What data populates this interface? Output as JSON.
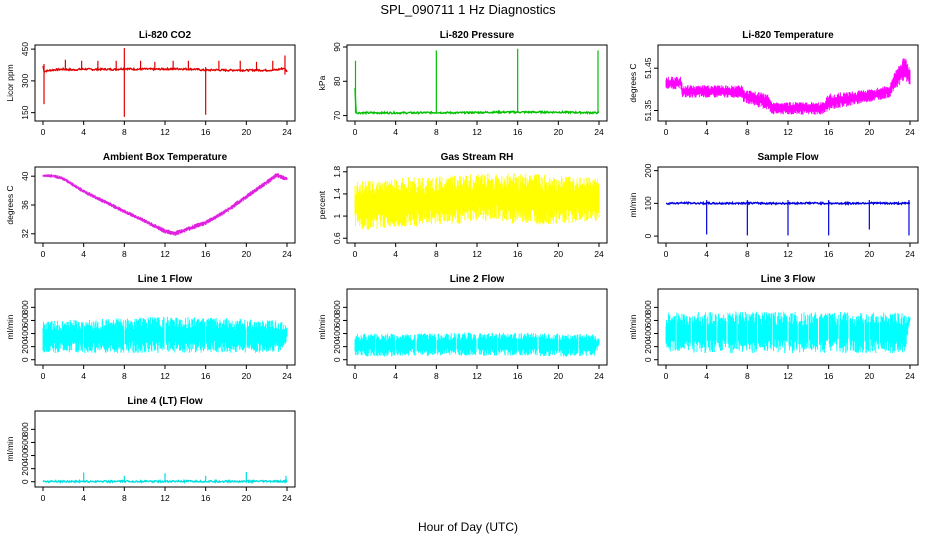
{
  "figure": {
    "title": "SPL_090711  1 Hz Diagnostics",
    "xlabel": "Hour of Day (UTC)"
  },
  "chart_data": [
    {
      "type": "line",
      "title": "Li-820 CO2",
      "ylabel": "Licor ppm",
      "color": "#e00000",
      "xlim": [
        0,
        24
      ],
      "ylim": [
        120,
        460
      ],
      "xticks": [
        0,
        4,
        8,
        12,
        16,
        20,
        24
      ],
      "yticks": [
        150,
        300,
        450
      ],
      "x": [
        0,
        0.1,
        1,
        2,
        3,
        4,
        5,
        6,
        7,
        8,
        9,
        10,
        11,
        12,
        13,
        14,
        15,
        16,
        17,
        18,
        19,
        20,
        21,
        22,
        23,
        23.7,
        24
      ],
      "y": [
        370,
        345,
        352,
        355,
        352,
        356,
        354,
        355,
        354,
        358,
        355,
        356,
        355,
        356,
        357,
        356,
        355,
        350,
        352,
        350,
        351,
        350,
        351,
        350,
        352,
        360,
        345
      ],
      "spikes": [
        {
          "x": 0.1,
          "low": 190,
          "high": 380
        },
        {
          "x": 2.2,
          "low": 350,
          "high": 400
        },
        {
          "x": 3.8,
          "low": 350,
          "high": 395
        },
        {
          "x": 5.4,
          "low": 350,
          "high": 395
        },
        {
          "x": 7.2,
          "low": 350,
          "high": 395
        },
        {
          "x": 8.0,
          "low": 130,
          "high": 455
        },
        {
          "x": 9.6,
          "low": 350,
          "high": 395
        },
        {
          "x": 11.0,
          "low": 350,
          "high": 390
        },
        {
          "x": 12.8,
          "low": 350,
          "high": 395
        },
        {
          "x": 14.3,
          "low": 350,
          "high": 395
        },
        {
          "x": 16.0,
          "low": 140,
          "high": 365
        },
        {
          "x": 17.3,
          "low": 350,
          "high": 395
        },
        {
          "x": 19.4,
          "low": 350,
          "high": 395
        },
        {
          "x": 21.0,
          "low": 350,
          "high": 390
        },
        {
          "x": 22.6,
          "low": 350,
          "high": 395
        },
        {
          "x": 23.8,
          "low": 330,
          "high": 420
        }
      ]
    },
    {
      "type": "line",
      "title": "Li-820 Pressure",
      "ylabel": "kPa",
      "color": "#00c000",
      "xlim": [
        0,
        24
      ],
      "ylim": [
        69,
        90
      ],
      "xticks": [
        0,
        4,
        8,
        12,
        16,
        20,
        24
      ],
      "yticks": [
        70,
        80,
        90
      ],
      "x": [
        0,
        0.1,
        0.2,
        2,
        4,
        6,
        8,
        10,
        12,
        14,
        16,
        18,
        20,
        22,
        24
      ],
      "y": [
        78,
        71,
        70.8,
        70.8,
        70.8,
        70.8,
        70.9,
        70.8,
        70.9,
        71.0,
        71.0,
        71.0,
        71.0,
        70.9,
        70.8
      ],
      "spikes": [
        {
          "x": 0.05,
          "low": 70.8,
          "high": 86
        },
        {
          "x": 8.0,
          "low": 70.8,
          "high": 89
        },
        {
          "x": 16.0,
          "low": 70.8,
          "high": 89.5
        },
        {
          "x": 23.9,
          "low": 70.8,
          "high": 89
        }
      ]
    },
    {
      "type": "area",
      "title": "Li-820 Temperature",
      "ylabel": "degrees C",
      "color": "#ff00ff",
      "xlim": [
        0,
        24
      ],
      "ylim": [
        51.33,
        51.5
      ],
      "xticks": [
        0,
        4,
        8,
        12,
        16,
        20,
        24
      ],
      "yticks": [
        51.35,
        51.45
      ],
      "x": [
        0,
        1.5,
        1.6,
        7.5,
        7.6,
        10,
        10.5,
        15.5,
        16,
        20,
        22,
        22.5,
        23,
        23.5,
        24
      ],
      "low": [
        51.4,
        51.4,
        51.38,
        51.38,
        51.37,
        51.35,
        51.34,
        51.34,
        51.35,
        51.37,
        51.38,
        51.4,
        51.41,
        51.42,
        51.41
      ],
      "high": [
        51.43,
        51.43,
        51.41,
        51.41,
        51.4,
        51.39,
        51.37,
        51.37,
        51.39,
        51.4,
        51.41,
        51.44,
        51.46,
        51.48,
        51.45
      ]
    },
    {
      "type": "area",
      "title": "Ambient Box Temperature",
      "ylabel": "degrees C",
      "color": "#e020e0",
      "xlim": [
        0,
        24
      ],
      "ylim": [
        31,
        41
      ],
      "xticks": [
        0,
        4,
        8,
        12,
        16,
        20,
        24
      ],
      "yticks": [
        32,
        36,
        40
      ],
      "x": [
        0,
        1,
        2,
        4,
        6,
        8,
        10,
        12,
        13,
        14,
        16,
        18,
        20,
        22,
        23,
        24
      ],
      "low": [
        39.8,
        39.8,
        39.4,
        37.6,
        36.2,
        34.8,
        33.5,
        32.0,
        31.7,
        32.2,
        33.2,
        34.8,
        36.8,
        38.8,
        39.8,
        39.3
      ],
      "high": [
        40.3,
        40.3,
        39.9,
        38.2,
        36.8,
        35.4,
        34.1,
        32.7,
        32.4,
        32.9,
        33.9,
        35.5,
        37.5,
        39.5,
        40.5,
        39.9
      ]
    },
    {
      "type": "area",
      "title": "Gas Stream RH",
      "ylabel": "percent",
      "color": "#ffff00",
      "xlim": [
        0,
        24
      ],
      "ylim": [
        0.55,
        1.85
      ],
      "xticks": [
        0,
        4,
        8,
        12,
        16,
        20,
        24
      ],
      "yticks": [
        0.6,
        1.0,
        1.4,
        1.8
      ],
      "x": [
        0,
        2,
        4,
        6,
        8,
        10,
        12,
        14,
        16,
        18,
        20,
        22,
        24
      ],
      "low": [
        0.75,
        0.75,
        0.8,
        0.8,
        0.85,
        0.85,
        0.9,
        0.9,
        0.85,
        0.85,
        0.85,
        0.9,
        0.9
      ],
      "high": [
        1.65,
        1.65,
        1.7,
        1.7,
        1.72,
        1.74,
        1.76,
        1.78,
        1.78,
        1.76,
        1.74,
        1.72,
        1.7
      ]
    },
    {
      "type": "line",
      "title": "Sample Flow",
      "ylabel": "ml/min",
      "color": "#0000e0",
      "xlim": [
        0,
        24
      ],
      "ylim": [
        -15,
        205
      ],
      "xticks": [
        0,
        4,
        8,
        12,
        16,
        20,
        24
      ],
      "yticks": [
        0,
        100,
        200
      ],
      "x": [
        0,
        2,
        4,
        6,
        8,
        10,
        12,
        14,
        16,
        18,
        20,
        22,
        24
      ],
      "y": [
        100,
        101,
        100,
        100,
        101,
        100,
        100,
        101,
        100,
        100,
        101,
        100,
        100
      ],
      "spikes": [
        {
          "x": 4.0,
          "low": 5,
          "high": 110
        },
        {
          "x": 8.0,
          "low": 2,
          "high": 110
        },
        {
          "x": 12.0,
          "low": 2,
          "high": 110
        },
        {
          "x": 16.0,
          "low": 2,
          "high": 110
        },
        {
          "x": 20.0,
          "low": 20,
          "high": 110
        },
        {
          "x": 23.9,
          "low": 2,
          "high": 110
        }
      ]
    },
    {
      "type": "area",
      "title": "Line 1 Flow",
      "ylabel": "ml/min",
      "color": "#00ffff",
      "xlim": [
        0,
        24
      ],
      "ylim": [
        -50,
        1050
      ],
      "xticks": [
        0,
        4,
        8,
        12,
        16,
        20,
        24
      ],
      "yticks": [
        0,
        200,
        400,
        600,
        800
      ],
      "x": [
        0,
        4,
        8,
        12,
        16,
        20,
        23.5,
        24
      ],
      "low": [
        100,
        100,
        100,
        100,
        100,
        100,
        100,
        300
      ],
      "high": [
        600,
        620,
        640,
        660,
        650,
        630,
        600,
        500
      ],
      "gaps": [
        4,
        8,
        12,
        16,
        20
      ]
    },
    {
      "type": "area",
      "title": "Line 2 Flow",
      "ylabel": "ml/min",
      "color": "#00ffff",
      "xlim": [
        0,
        24
      ],
      "ylim": [
        -50,
        1050
      ],
      "xticks": [
        0,
        4,
        8,
        12,
        16,
        20,
        24
      ],
      "yticks": [
        0,
        200,
        400,
        600,
        800
      ],
      "x": [
        0,
        4,
        8,
        12,
        16,
        20,
        23.5,
        24
      ],
      "low": [
        50,
        50,
        60,
        60,
        60,
        50,
        50,
        200
      ],
      "high": [
        400,
        405,
        410,
        420,
        415,
        400,
        395,
        320
      ],
      "gaps": [
        2,
        4,
        6,
        8,
        10,
        12,
        14,
        16,
        18,
        20,
        22
      ]
    },
    {
      "type": "area",
      "title": "Line 3 Flow",
      "ylabel": "ml/min",
      "color": "#00ffff",
      "xlim": [
        0,
        24
      ],
      "ylim": [
        -50,
        1050
      ],
      "xticks": [
        0,
        4,
        8,
        12,
        16,
        20,
        24
      ],
      "yticks": [
        0,
        200,
        400,
        600,
        800
      ],
      "x": [
        0,
        4,
        8,
        12,
        16,
        20,
        23.5,
        24
      ],
      "low": [
        100,
        100,
        100,
        100,
        100,
        100,
        100,
        600
      ],
      "high": [
        720,
        730,
        740,
        740,
        735,
        730,
        720,
        650
      ],
      "gaps": [
        1,
        2.5,
        4,
        5,
        6,
        7,
        8,
        9,
        10.5,
        12,
        13,
        14,
        15,
        16,
        17,
        18,
        19.5,
        20,
        21
      ]
    },
    {
      "type": "line",
      "title": "Line 4 (LT) Flow",
      "ylabel": "ml/min",
      "color": "#00e0e0",
      "xlim": [
        0,
        24
      ],
      "ylim": [
        -50,
        1050
      ],
      "xticks": [
        0,
        4,
        8,
        12,
        16,
        20,
        24
      ],
      "yticks": [
        0,
        200,
        400,
        600,
        800
      ],
      "x": [
        0,
        4,
        8,
        12,
        16,
        20,
        24
      ],
      "y": [
        5,
        5,
        5,
        5,
        5,
        5,
        5
      ],
      "spikes": [
        {
          "x": 4.0,
          "low": 5,
          "high": 140
        },
        {
          "x": 8.0,
          "low": 5,
          "high": 90
        },
        {
          "x": 12.0,
          "low": 5,
          "high": 130
        },
        {
          "x": 16.0,
          "low": 5,
          "high": 90
        },
        {
          "x": 20.0,
          "low": 5,
          "high": 150
        },
        {
          "x": 23.9,
          "low": 5,
          "high": 90
        }
      ]
    }
  ]
}
